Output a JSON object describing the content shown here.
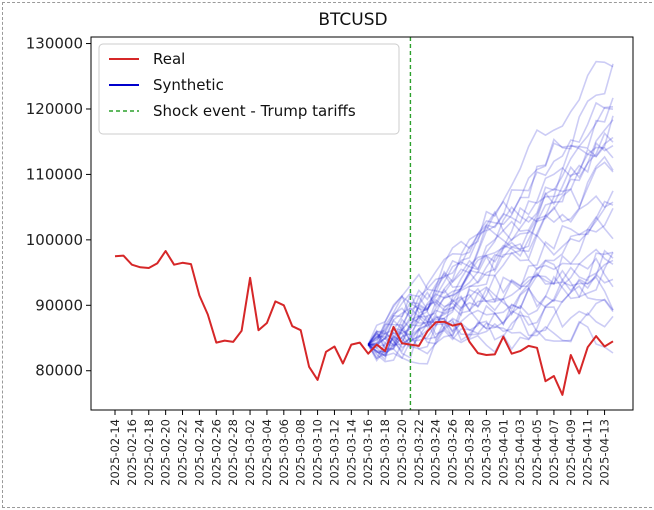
{
  "chart_data": {
    "type": "line",
    "title": "BTCUSD",
    "xlabel": "",
    "ylabel": "",
    "ylim": [
      74000,
      131000
    ],
    "y_ticks": [
      80000,
      90000,
      100000,
      110000,
      120000,
      130000
    ],
    "x_tick_labels": [
      "2025-02-14",
      "2025-02-16",
      "2025-02-18",
      "2025-02-20",
      "2025-02-22",
      "2025-02-24",
      "2025-02-26",
      "2025-02-28",
      "2025-03-02",
      "2025-03-04",
      "2025-03-06",
      "2025-03-08",
      "2025-03-10",
      "2025-03-12",
      "2025-03-14",
      "2025-03-16",
      "2025-03-18",
      "2025-03-20",
      "2025-03-22",
      "2025-03-24",
      "2025-03-26",
      "2025-03-28",
      "2025-03-30",
      "2025-04-01",
      "2025-04-03",
      "2025-04-05",
      "2025-04-07",
      "2025-04-09",
      "2025-04-11",
      "2025-04-13"
    ],
    "x_start": "2025-02-14",
    "x_end": "2025-04-14",
    "grid": false,
    "legend": {
      "placement": "top-left",
      "entries": [
        {
          "label": "Real",
          "color": "#d62728",
          "style": "solid"
        },
        {
          "label": "Synthetic",
          "color": "#0000cc",
          "style": "solid"
        },
        {
          "label": "Shock event - Trump tariffs",
          "color": "#2ca02c",
          "style": "dashed"
        }
      ]
    },
    "shock_event": {
      "date": "2025-03-21",
      "label": "Shock event - Trump tariffs",
      "color": "#2ca02c"
    },
    "synthetic": {
      "count": 30,
      "start_date": "2025-03-16",
      "start_value": 84000,
      "color": "#0000cc",
      "endpoint_range": [
        86000,
        129000
      ]
    },
    "series": [
      {
        "name": "Real",
        "color": "#d62728",
        "x": [
          "2025-02-14",
          "2025-02-15",
          "2025-02-16",
          "2025-02-17",
          "2025-02-18",
          "2025-02-19",
          "2025-02-20",
          "2025-02-21",
          "2025-02-22",
          "2025-02-23",
          "2025-02-24",
          "2025-02-25",
          "2025-02-26",
          "2025-02-27",
          "2025-02-28",
          "2025-03-01",
          "2025-03-02",
          "2025-03-03",
          "2025-03-04",
          "2025-03-05",
          "2025-03-06",
          "2025-03-07",
          "2025-03-08",
          "2025-03-09",
          "2025-03-10",
          "2025-03-11",
          "2025-03-12",
          "2025-03-13",
          "2025-03-14",
          "2025-03-15",
          "2025-03-16",
          "2025-03-17",
          "2025-03-18",
          "2025-03-19",
          "2025-03-20",
          "2025-03-21",
          "2025-03-22",
          "2025-03-23",
          "2025-03-24",
          "2025-03-25",
          "2025-03-26",
          "2025-03-27",
          "2025-03-28",
          "2025-03-29",
          "2025-03-30",
          "2025-03-31",
          "2025-04-01",
          "2025-04-02",
          "2025-04-03",
          "2025-04-04",
          "2025-04-05",
          "2025-04-06",
          "2025-04-07",
          "2025-04-08",
          "2025-04-09",
          "2025-04-10",
          "2025-04-11",
          "2025-04-12",
          "2025-04-13",
          "2025-04-14"
        ],
        "values": [
          97500,
          97600,
          96200,
          95800,
          95700,
          96400,
          98300,
          96200,
          96500,
          96300,
          91500,
          88600,
          84300,
          84600,
          84400,
          86100,
          94200,
          86200,
          87300,
          90600,
          90000,
          86800,
          86200,
          80600,
          78600,
          82900,
          83700,
          81100,
          84000,
          84300,
          82600,
          84000,
          83000,
          86700,
          84200,
          84000,
          83800,
          86000,
          87400,
          87500,
          86900,
          87200,
          84400,
          82700,
          82400,
          82500,
          85200,
          82600,
          83000,
          83800,
          83500,
          78400,
          79200,
          76300,
          82400,
          79600,
          83600,
          85300,
          83700,
          84500
        ]
      }
    ]
  }
}
